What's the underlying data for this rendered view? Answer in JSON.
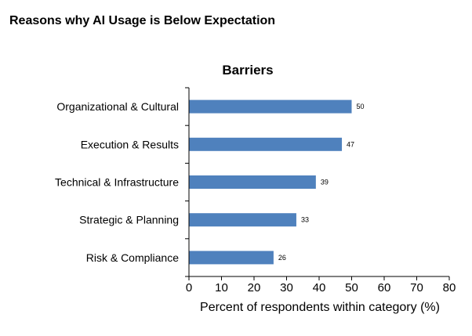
{
  "page": {
    "title": "Reasons why AI Usage is Below Expectation"
  },
  "chart_data": {
    "type": "bar",
    "orientation": "horizontal",
    "title": "Barriers",
    "xlabel": "Percent of respondents within category (%)",
    "ylabel": "",
    "categories": [
      "Organizational & Cultural",
      "Execution & Results",
      "Technical & Infrastructure",
      "Strategic & Planning",
      "Risk & Compliance"
    ],
    "values": [
      50,
      47,
      39,
      33,
      26
    ],
    "xlim": [
      0,
      80
    ],
    "xticks": [
      0,
      10,
      20,
      30,
      40,
      50,
      60,
      70,
      80
    ],
    "grid": false,
    "legend": "none",
    "colors": {
      "bar": "#4f81bd",
      "axis": "#000000",
      "text": "#000000"
    }
  }
}
